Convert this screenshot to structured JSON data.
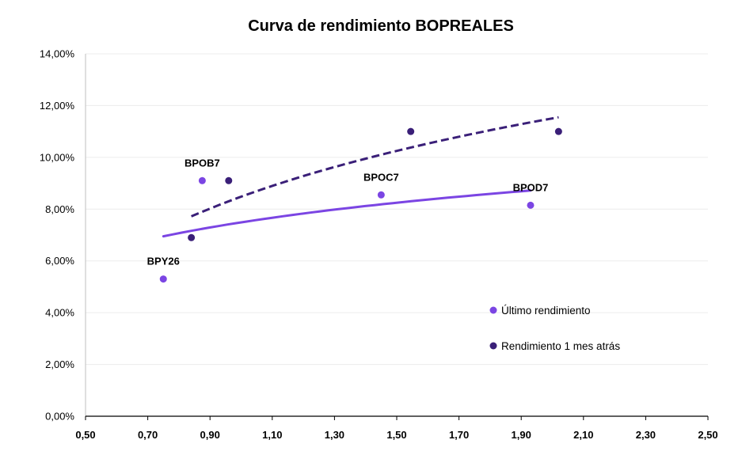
{
  "chart_data": {
    "type": "scatter",
    "title": "Curva de rendimiento BOPREALES",
    "xlabel": "",
    "ylabel": "",
    "xlim": [
      0.5,
      2.5
    ],
    "ylim": [
      0,
      0.14
    ],
    "x_ticks": [
      0.5,
      0.7,
      0.9,
      1.1,
      1.3,
      1.5,
      1.7,
      1.9,
      2.1,
      2.3,
      2.5
    ],
    "x_tick_labels": [
      "0,50",
      "0,70",
      "0,90",
      "1,10",
      "1,30",
      "1,50",
      "1,70",
      "1,90",
      "2,10",
      "2,30",
      "2,50"
    ],
    "y_ticks": [
      0,
      0.02,
      0.04,
      0.06,
      0.08,
      0.1,
      0.12,
      0.14
    ],
    "y_tick_labels": [
      "0,00%",
      "2,00%",
      "4,00%",
      "6,00%",
      "8,00%",
      "10,00%",
      "12,00%",
      "14,00%"
    ],
    "grid": "horizontal",
    "legend_position": "bottom-right",
    "series": [
      {
        "name": "Último rendimiento",
        "color": "#7b45e3",
        "points": [
          {
            "x": 0.75,
            "y": 0.053,
            "label": "BPY26"
          },
          {
            "x": 0.875,
            "y": 0.091,
            "label": "BPOB7"
          },
          {
            "x": 1.45,
            "y": 0.0855,
            "label": "BPOC7"
          },
          {
            "x": 1.93,
            "y": 0.0815,
            "label": "BPOD7"
          }
        ],
        "trendline": {
          "style": "solid",
          "from_x": 0.75,
          "to_x": 1.93,
          "start_y": 0.0695,
          "end_y": 0.0872
        }
      },
      {
        "name": "Rendimiento 1 mes atrás",
        "color": "#3a1f78",
        "points": [
          {
            "x": 0.84,
            "y": 0.069
          },
          {
            "x": 0.96,
            "y": 0.091
          },
          {
            "x": 1.545,
            "y": 0.11
          },
          {
            "x": 2.02,
            "y": 0.11
          }
        ],
        "trendline": {
          "style": "dashed",
          "from_x": 0.84,
          "to_x": 2.02,
          "start_y": 0.0772,
          "end_y": 0.1155
        }
      }
    ]
  }
}
